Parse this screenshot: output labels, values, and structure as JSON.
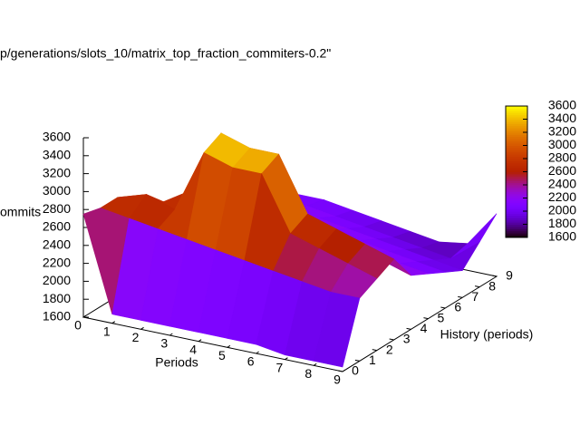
{
  "chart_data": {
    "type": "surface",
    "title": "p/generations/slots_10/matrix_top_fraction_commiters-0.2\"",
    "xlabel": "Periods",
    "ylabel": "History (periods)",
    "zlabel": "ommits",
    "x": [
      0,
      1,
      2,
      3,
      4,
      5,
      6,
      7,
      8,
      9
    ],
    "y": [
      0,
      1,
      2,
      3,
      4,
      5,
      6,
      7,
      8,
      9
    ],
    "z": [
      [
        2750,
        1700,
        1700,
        1700,
        1700,
        1700,
        1700,
        1650,
        1650,
        1650
      ],
      [
        2700,
        2650,
        2600,
        2550,
        2500,
        2450,
        2400,
        2350,
        2300,
        2300
      ],
      [
        2700,
        2800,
        2700,
        3400,
        3300,
        3300,
        2700,
        2600,
        2500,
        2400
      ],
      [
        2500,
        2600,
        2800,
        3500,
        3400,
        3400,
        2800,
        2700,
        2600,
        2500
      ],
      [
        2400,
        2500,
        2600,
        2700,
        2650,
        2600,
        2500,
        2400,
        2300,
        2200
      ],
      [
        2300,
        2350,
        2400,
        2400,
        2350,
        2300,
        2250,
        2200,
        2150,
        2100
      ],
      [
        2200,
        2250,
        2300,
        2300,
        2250,
        2200,
        2150,
        2100,
        2050,
        2000
      ],
      [
        2100,
        2150,
        2200,
        2200,
        2150,
        2100,
        2050,
        2000,
        1950,
        1900
      ],
      [
        2050,
        2100,
        2100,
        2100,
        2050,
        2000,
        1950,
        1900,
        1850,
        2100
      ],
      [
        2000,
        2050,
        2050,
        2050,
        2000,
        1950,
        1900,
        1850,
        1900,
        2300
      ]
    ],
    "xlim": [
      0,
      9
    ],
    "ylim": [
      0,
      9
    ],
    "zlim": [
      1600,
      3600
    ],
    "xticks": [
      0,
      1,
      2,
      3,
      4,
      5,
      6,
      7,
      8,
      9
    ],
    "yticks": [
      0,
      1,
      2,
      3,
      4,
      5,
      6,
      7,
      8,
      9
    ],
    "zticks": [
      1600,
      1800,
      2000,
      2200,
      2400,
      2600,
      2800,
      3000,
      3200,
      3400,
      3600
    ],
    "cblim": [
      1600,
      3600
    ],
    "cbticks": [
      1600,
      1800,
      2000,
      2200,
      2400,
      2600,
      2800,
      3000,
      3200,
      3400,
      3600
    ],
    "palette": "rgbformulae 7,5,15"
  }
}
